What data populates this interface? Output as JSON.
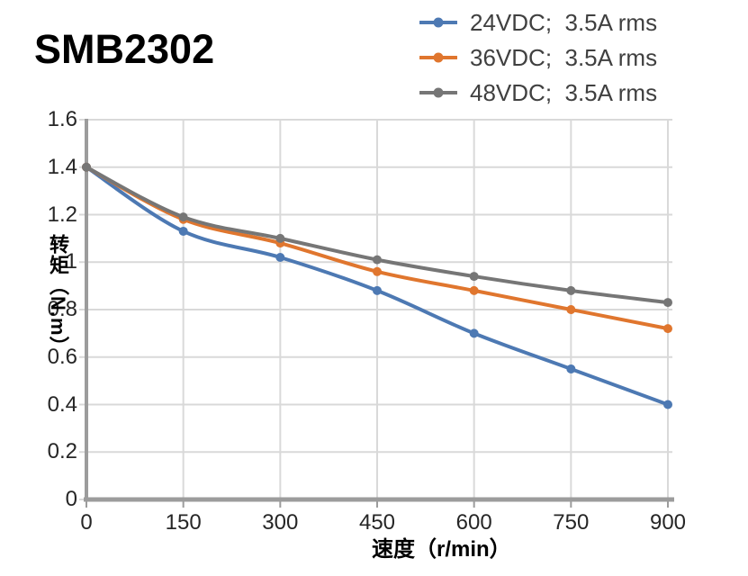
{
  "title": "SMB2302",
  "chart_data": {
    "type": "line",
    "x": [
      0,
      150,
      300,
      450,
      600,
      750,
      900
    ],
    "series": [
      {
        "name": "24VDC;  3.5A rms",
        "color": "#4d79b3",
        "values": [
          1.4,
          1.13,
          1.02,
          0.88,
          0.7,
          0.55,
          0.4
        ]
      },
      {
        "name": "36VDC;  3.5A rms",
        "color": "#e0762e",
        "values": [
          1.4,
          1.18,
          1.08,
          0.96,
          0.88,
          0.8,
          0.72
        ]
      },
      {
        "name": "48VDC;  3.5A rms",
        "color": "#767676",
        "values": [
          1.4,
          1.19,
          1.1,
          1.01,
          0.94,
          0.88,
          0.83
        ]
      }
    ],
    "xlabel": "速度（r/min）",
    "ylabel": "转矩（N.m）",
    "xlim": [
      0,
      900
    ],
    "ylim": [
      0,
      1.6
    ],
    "xticks": [
      "0",
      "150",
      "300",
      "450",
      "600",
      "750",
      "900"
    ],
    "yticks": [
      "0",
      "0.2",
      "0.4",
      "0.6",
      "0.8",
      "1",
      "1.2",
      "1.4",
      "1.6"
    ],
    "grid": true,
    "legend_position": "top-right",
    "smooth_lines": true,
    "marker": "circle"
  },
  "colors": {
    "grid": "#d9d9d9",
    "axis": "#9c9c9c",
    "tick_text": "#262626",
    "legend_text": "#404040",
    "title_text": "#000000"
  }
}
